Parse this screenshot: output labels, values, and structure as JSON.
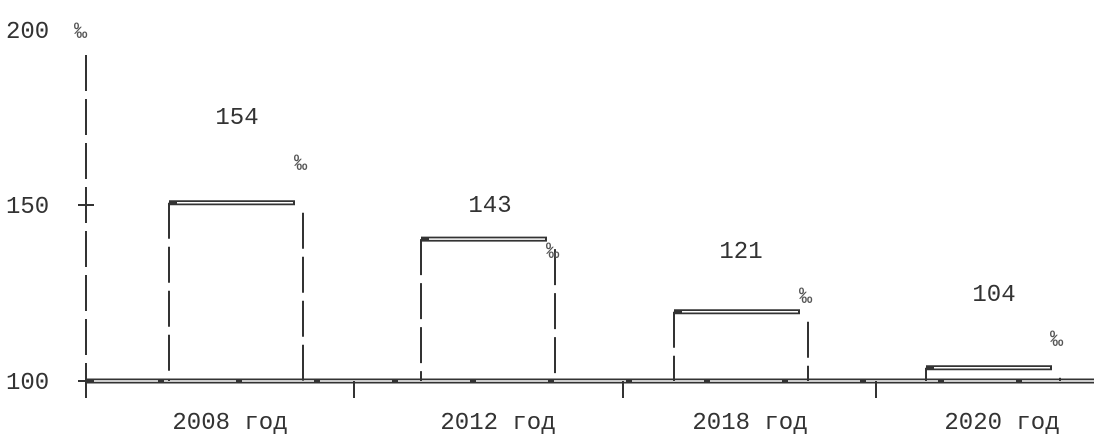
{
  "chart_data": {
    "type": "bar",
    "title": "",
    "xlabel": "",
    "ylabel": "",
    "y_unit": "‰",
    "ylim": [
      100,
      200
    ],
    "yticks": [
      100,
      150,
      200
    ],
    "categories": [
      "2008 год",
      "2012 год",
      "2018 год",
      "2020 год"
    ],
    "values": [
      154,
      143,
      121,
      104
    ],
    "value_suffix": "‰",
    "grid": false,
    "legend": "none"
  },
  "labels": {
    "ytick_100": "100",
    "ytick_150": "150",
    "ytick_200": "200",
    "y_unit": "‰",
    "cat_0": "2008 год",
    "cat_1": "2012 год",
    "cat_2": "2018 год",
    "cat_3": "2020 год",
    "val_0": "154",
    "val_1": "143",
    "val_2": "121",
    "val_3": "104"
  },
  "colors": {
    "axis": "#333333",
    "bar_edge": "#333333",
    "text": "#333333"
  }
}
